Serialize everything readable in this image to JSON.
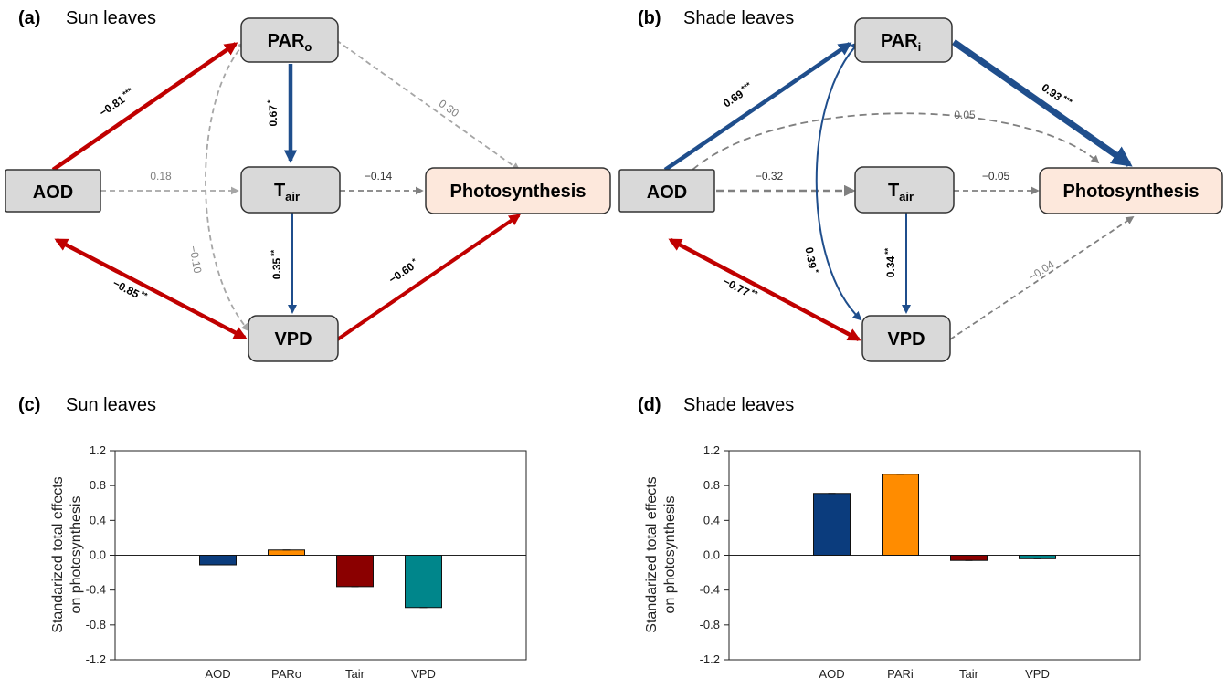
{
  "colors": {
    "negative": "#c00000",
    "positive": "#1f4e8c",
    "nonsig": "#a6a6a6",
    "node_fill": "#d9d9d9",
    "photo_fill": "#fde8dc",
    "bar_aod": "#0b3c7d",
    "bar_par": "#ff8c00",
    "bar_tair": "#8b0000",
    "bar_vpd": "#00868b"
  },
  "panels": {
    "a": {
      "letter": "(a)",
      "title": "Sun leaves"
    },
    "b": {
      "letter": "(b)",
      "title": "Shade leaves"
    },
    "c": {
      "letter": "(c)",
      "title": "Sun leaves"
    },
    "d": {
      "letter": "(d)",
      "title": "Shade leaves"
    }
  },
  "diagram_a": {
    "nodes": {
      "aod": "AOD",
      "par_main": "PAR",
      "par_sub": "o",
      "tair_main": "T",
      "tair_sub": "air",
      "vpd": "VPD",
      "photo": "Photosynthesis"
    },
    "paths": {
      "aod_par": {
        "value": "−0.81",
        "stars": "***"
      },
      "par_tair": {
        "value": "0.67",
        "stars": "*"
      },
      "par_photo": {
        "value": "0.30"
      },
      "aod_tair": {
        "value": "0.18"
      },
      "tair_photo": {
        "value": "−0.14"
      },
      "par_vpd": {
        "value": "−0.10"
      },
      "tair_vpd": {
        "value": "0.35",
        "stars": "**"
      },
      "aod_vpd": {
        "value": "−0.85",
        "stars": "**"
      },
      "vpd_photo": {
        "value": "−0.60",
        "stars": "*"
      }
    }
  },
  "diagram_b": {
    "nodes": {
      "aod": "AOD",
      "par_main": "PAR",
      "par_sub": "i",
      "tair_main": "T",
      "tair_sub": "air",
      "vpd": "VPD",
      "photo": "Photosynthesis"
    },
    "paths": {
      "aod_par": {
        "value": "0.69",
        "stars": "***"
      },
      "par_photo": {
        "value": "0.93",
        "stars": "***"
      },
      "aod_photo": {
        "value": "0.05"
      },
      "aod_tair": {
        "value": "−0.32"
      },
      "tair_photo": {
        "value": "−0.05"
      },
      "par_vpd": {
        "value": "0.39",
        "stars": "*"
      },
      "tair_vpd": {
        "value": "0.34",
        "stars": "**"
      },
      "aod_vpd": {
        "value": "−0.77",
        "stars": "**"
      },
      "vpd_photo": {
        "value": "−0.04"
      }
    }
  },
  "chart_data": [
    {
      "type": "bar",
      "panel": "(c)",
      "title": "Sun leaves",
      "ylabel_line1": "Standarized total effects",
      "ylabel_line2": "on photosynthesis",
      "categories": [
        "AOD",
        "PARo",
        "Tair",
        "VPD"
      ],
      "values": [
        -0.11,
        0.06,
        -0.36,
        -0.6
      ],
      "ylim": [
        -1.2,
        1.2
      ],
      "yticks": [
        "1.2",
        "0.8",
        "0.4",
        "0.0",
        "-0.4",
        "-0.8",
        "-1.2"
      ],
      "grid": false
    },
    {
      "type": "bar",
      "panel": "(d)",
      "title": "Shade leaves",
      "ylabel_line1": "Standarized total effects",
      "ylabel_line2": "on photosynthesis",
      "categories": [
        "AOD",
        "PARi",
        "Tair",
        "VPD"
      ],
      "values": [
        0.71,
        0.93,
        -0.06,
        -0.04
      ],
      "ylim": [
        -1.2,
        1.2
      ],
      "yticks": [
        "1.2",
        "0.8",
        "0.4",
        "0.0",
        "-0.4",
        "-0.8",
        "-1.2"
      ],
      "grid": false
    }
  ]
}
